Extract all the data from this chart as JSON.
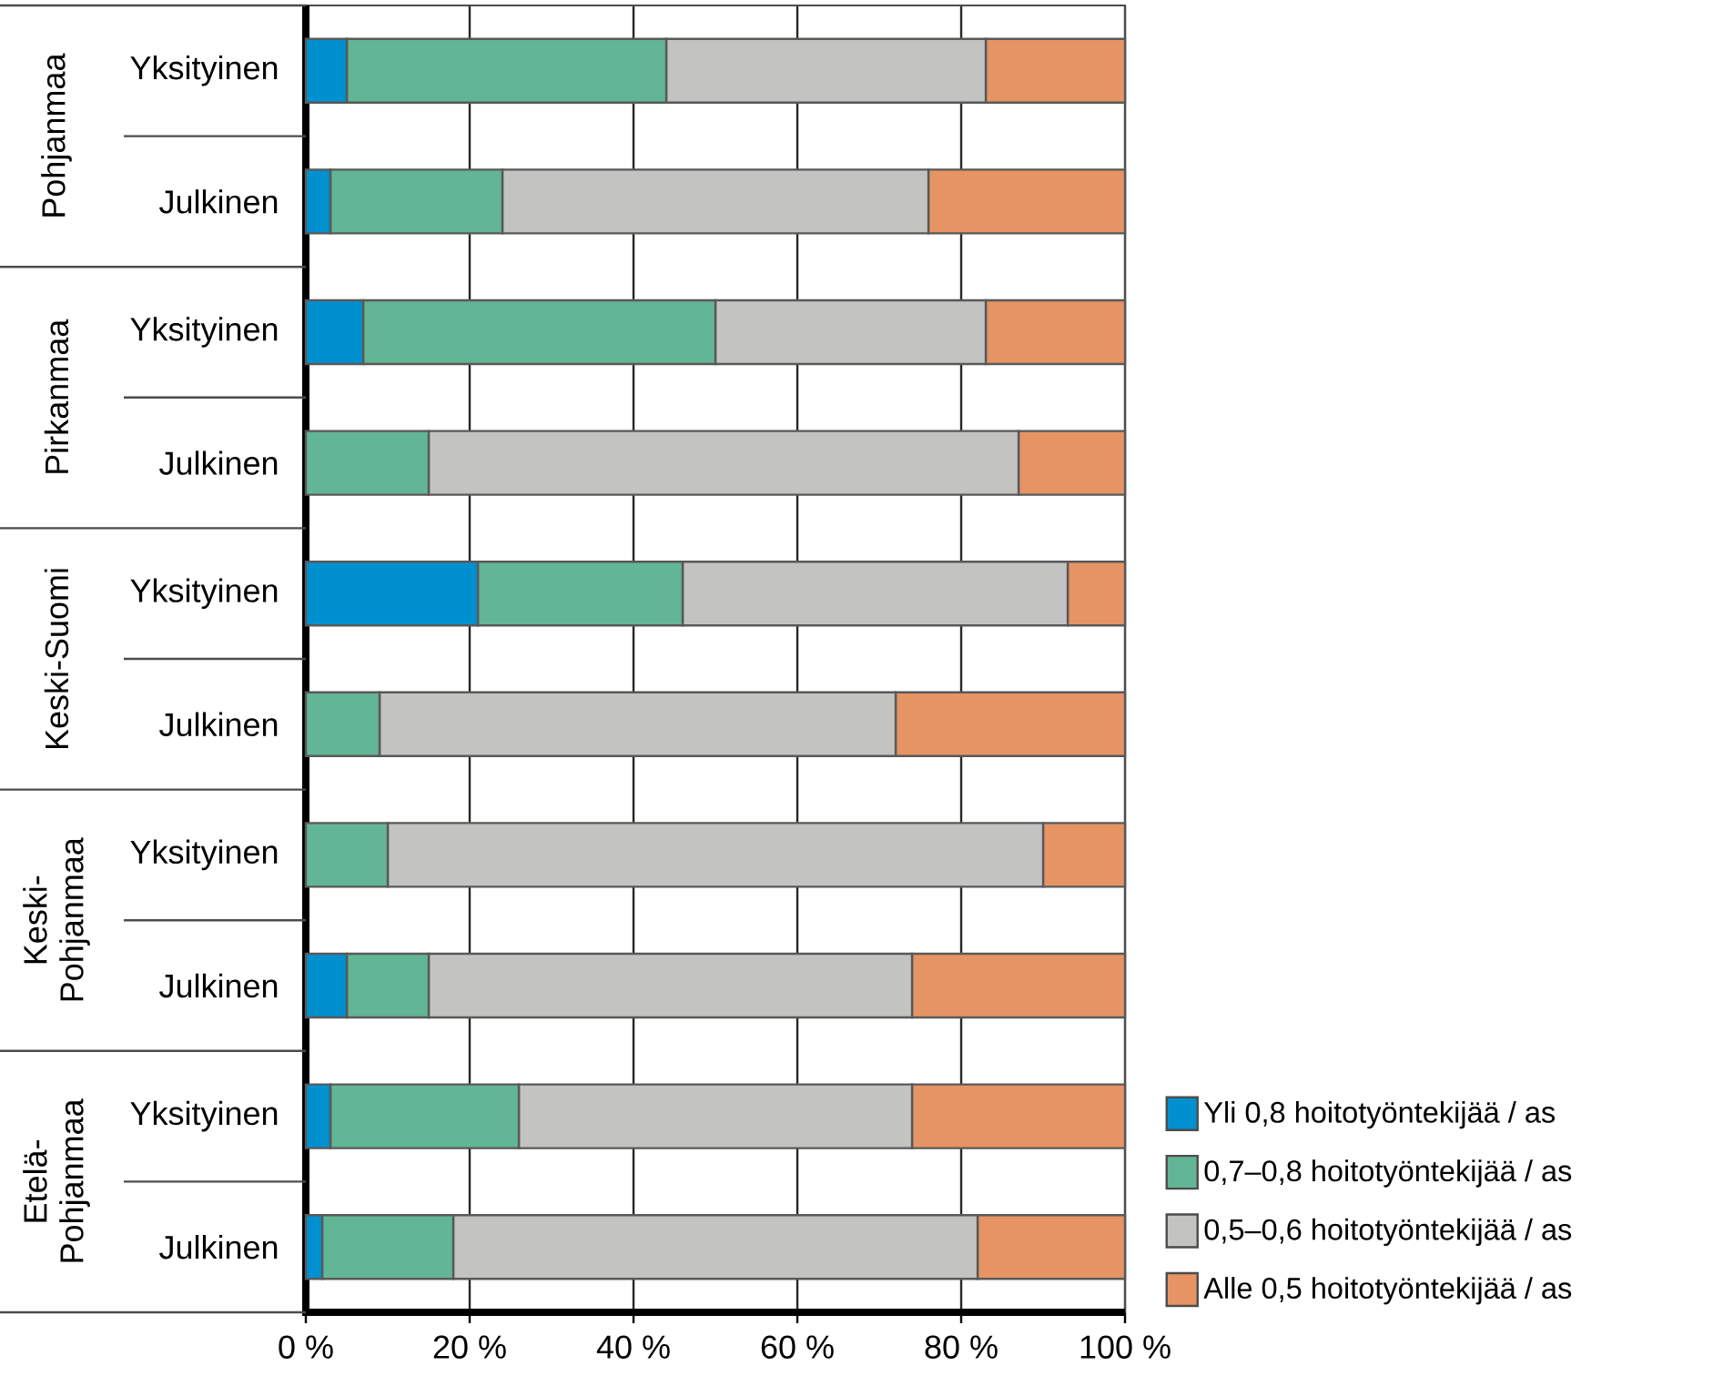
{
  "chart_data": {
    "type": "bar",
    "orientation": "horizontal",
    "stacked": true,
    "categories": [
      "Yksityinen",
      "Julkinen",
      "Yksityinen",
      "Julkinen",
      "Yksityinen",
      "Julkinen",
      "Yksityinen",
      "Julkinen",
      "Yksityinen",
      "Julkinen"
    ],
    "series": [
      {
        "name": "Yli 0,8 hoitotyöntekijää / as",
        "color": "#0090d0",
        "values": [
          5,
          3,
          7,
          0,
          21,
          0,
          0,
          5,
          3,
          2
        ]
      },
      {
        "name": "0,7–0,8 hoitotyöntekijää / as",
        "color": "#62b595",
        "values": [
          39,
          21,
          43,
          15,
          25,
          9,
          10,
          10,
          23,
          16
        ]
      },
      {
        "name": "0,5–0,6 hoitotyöntekijää / as",
        "color": "#c3c3c2",
        "values": [
          39,
          52,
          33,
          72,
          47,
          63,
          80,
          59,
          48,
          64
        ]
      },
      {
        "name": "Alle 0,5 hoitotyöntekijää / as",
        "color": "#e69464",
        "values": [
          17,
          24,
          17,
          13,
          7,
          28,
          10,
          26,
          26,
          18
        ]
      }
    ],
    "annotations": [
      "Pohjanmaa",
      "Pirkanmaa",
      "Keski-Suomi",
      "Keski-Pohjanmaa",
      "Etelä-Pohjanmaa"
    ],
    "xlim": [
      0,
      100
    ],
    "xticks": [
      {
        "value": 0,
        "label": "0 %"
      },
      {
        "value": 20,
        "label": "20 %"
      },
      {
        "value": 40,
        "label": "40 %"
      },
      {
        "value": 60,
        "label": "60 %"
      },
      {
        "value": 80,
        "label": "80 %"
      },
      {
        "value": 100,
        "label": "100 %"
      }
    ],
    "grid": "x",
    "legend": "bottom right"
  }
}
